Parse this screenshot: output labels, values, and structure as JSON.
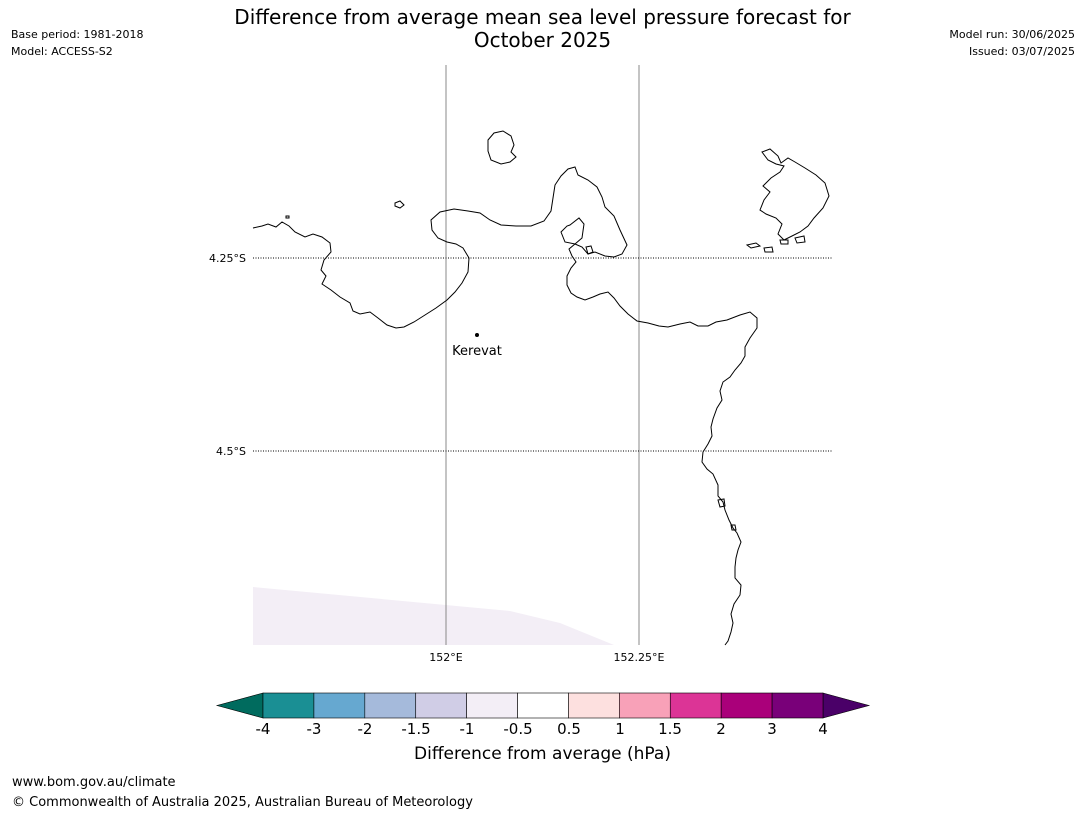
{
  "header": {
    "base_period": "Base period: 1981-2018",
    "model": "Model: ACCESS-S2",
    "model_run": "Model run: 30/06/2025",
    "issued": "Issued: 03/07/2025",
    "title_line1": "Difference from average mean sea level pressure forecast for",
    "title_line2": "October 2025"
  },
  "map": {
    "lat_labels": [
      "4.25°S",
      "4.5°S"
    ],
    "lon_labels": [
      "152°E",
      "152.25°E"
    ],
    "place": "Kerevat"
  },
  "colorbar": {
    "title": "Difference from average (hPa)",
    "ticks": [
      "-4",
      "-3",
      "-2",
      "-1.5",
      "-1",
      "-0.5",
      "0.5",
      "1",
      "1.5",
      "2",
      "3",
      "4"
    ],
    "colors": {
      "below_min": "#006b5e",
      "bins": [
        "#1a8f94",
        "#66a8d0",
        "#a5badb",
        "#d0cde6",
        "#f3eef6",
        "#ffffff",
        "#fde0df",
        "#f8a1b8",
        "#dc3496",
        "#aa007a",
        "#790079"
      ],
      "above_max": "#4a0068"
    }
  },
  "footer": {
    "url": "www.bom.gov.au/climate",
    "copyright": "© Commonwealth of Australia 2025, Australian Bureau of Meteorology"
  }
}
